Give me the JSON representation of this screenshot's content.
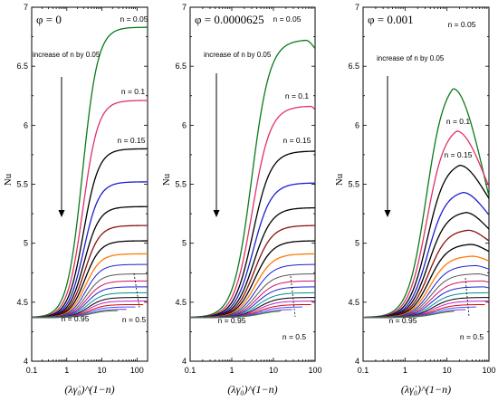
{
  "chart_data": [
    {
      "type": "line",
      "title": "φ = 0",
      "ylabel": "Nu",
      "xlabel": "(λγ̇₀)^(1−n)",
      "x_scale": "log",
      "xlim": [
        0.1,
        200
      ],
      "ylim": [
        4,
        7
      ],
      "x_ticks": [
        "0.1",
        "1",
        "10",
        "100"
      ],
      "y_ticks": [
        "4",
        "4.5",
        "5",
        "5.5",
        "6",
        "6.5",
        "7"
      ],
      "annotations": [
        "increase of n by 0.05",
        "n = 0.05",
        "n = 0.1",
        "n = 0.15",
        "n = 0.95",
        "n = 0.5"
      ],
      "base": 4.37,
      "x_mid": 2.8,
      "series_plateaus": [
        6.83,
        6.21,
        5.8,
        5.52,
        5.31,
        5.15,
        5.02,
        4.91,
        4.82,
        4.74,
        4.68,
        4.63,
        4.58,
        4.54,
        4.51,
        4.48,
        4.46,
        4.44,
        4.43
      ],
      "series_peak_x": [
        200,
        200,
        200,
        200,
        200,
        200,
        200,
        200,
        200,
        200,
        200,
        200,
        200,
        200,
        200,
        200,
        200,
        200,
        200
      ],
      "series_end_y": [
        6.83,
        6.21,
        5.8,
        5.52,
        5.31,
        5.15,
        5.02,
        4.91,
        4.82,
        4.74,
        4.68,
        4.63,
        4.58,
        4.54,
        4.51,
        4.48,
        4.46,
        4.44,
        4.43
      ],
      "series_end_x": [
        200,
        200,
        200,
        200,
        200,
        200,
        200,
        200,
        200,
        200,
        200,
        200,
        200,
        200,
        200,
        150,
        90,
        50,
        28
      ]
    },
    {
      "type": "line",
      "title": "φ = 0.0000625",
      "ylabel": "Nu",
      "xlabel": "(λγ̇₀)^(1−n)",
      "x_scale": "log",
      "xlim": [
        0.1,
        100
      ],
      "ylim": [
        4,
        7
      ],
      "x_ticks": [
        "0.1",
        "1",
        "10",
        "100"
      ],
      "y_ticks": [
        "4",
        "4.5",
        "5",
        "5.5",
        "6",
        "6.5",
        "7"
      ],
      "annotations": [
        "increase of n by 0.05",
        "n = 0.05",
        "n = 0.1",
        "n = 0.15",
        "n = 0.95",
        "n = 0.5"
      ],
      "base": 4.37,
      "x_mid": 3.0,
      "series_plateaus": [
        6.72,
        6.16,
        5.78,
        5.51,
        5.3,
        5.15,
        5.02,
        4.91,
        4.82,
        4.74,
        4.68,
        4.63,
        4.58,
        4.54,
        4.51,
        4.48,
        4.46,
        4.44,
        4.43
      ],
      "series_peak_x": [
        60,
        80,
        100,
        100,
        100,
        100,
        100,
        100,
        100,
        100,
        100,
        100,
        100,
        100,
        100,
        100,
        100,
        100,
        100
      ],
      "series_end_y": [
        6.65,
        6.13,
        5.77,
        5.51,
        5.3,
        5.15,
        5.02,
        4.91,
        4.82,
        4.74,
        4.68,
        4.63,
        4.58,
        4.54,
        4.51,
        4.48,
        4.46,
        4.44,
        4.43
      ],
      "series_end_x": [
        100,
        100,
        100,
        100,
        100,
        100,
        100,
        100,
        100,
        100,
        100,
        100,
        100,
        100,
        100,
        80,
        50,
        28,
        15
      ]
    },
    {
      "type": "line",
      "title": "φ = 0.001",
      "ylabel": "Nu",
      "xlabel": "(λγ̇₀)^(1−n)",
      "x_scale": "log",
      "xlim": [
        0.1,
        100
      ],
      "ylim": [
        4,
        7
      ],
      "x_ticks": [
        "0.1",
        "1",
        "10",
        "100"
      ],
      "y_ticks": [
        "4",
        "4.5",
        "5",
        "5.5",
        "6",
        "6.5",
        "7"
      ],
      "annotations": [
        "increase of n by 0.05",
        "n = 0.05",
        "n = 0.1",
        "n = 0.15",
        "n = 0.95",
        "n = 0.5"
      ],
      "base": 4.37,
      "x_mid": 3.2,
      "series_plateaus": [
        6.31,
        5.95,
        5.66,
        5.43,
        5.26,
        5.11,
        4.99,
        4.89,
        4.81,
        4.74,
        4.68,
        4.63,
        4.58,
        4.54,
        4.51,
        4.48,
        4.46,
        4.44,
        4.43
      ],
      "series_peak_x": [
        14,
        17,
        20,
        24,
        28,
        32,
        36,
        40,
        46,
        55,
        65,
        75,
        90,
        100,
        100,
        100,
        100,
        100,
        100
      ],
      "series_end_y": [
        5.4,
        5.48,
        5.38,
        5.24,
        5.12,
        5.02,
        4.93,
        4.85,
        4.78,
        4.72,
        4.67,
        4.62,
        4.58,
        4.54,
        4.51,
        4.48,
        4.46,
        4.44,
        4.43
      ],
      "series_end_x": [
        100,
        100,
        100,
        100,
        100,
        100,
        100,
        100,
        100,
        100,
        100,
        100,
        100,
        100,
        100,
        80,
        50,
        28,
        15
      ]
    }
  ],
  "series_colors": [
    "#0a7a1a",
    "#e0306a",
    "#000000",
    "#1f1fd0",
    "#000000",
    "#8b1010",
    "#000000",
    "#ff7a00",
    "#1f1fd0",
    "#555555",
    "#d01060",
    "#1f1fd0",
    "#009090",
    "#000000",
    "#c020c0",
    "#e00000",
    "#3060ff",
    "#8a2be2",
    "#2a8a2a"
  ]
}
